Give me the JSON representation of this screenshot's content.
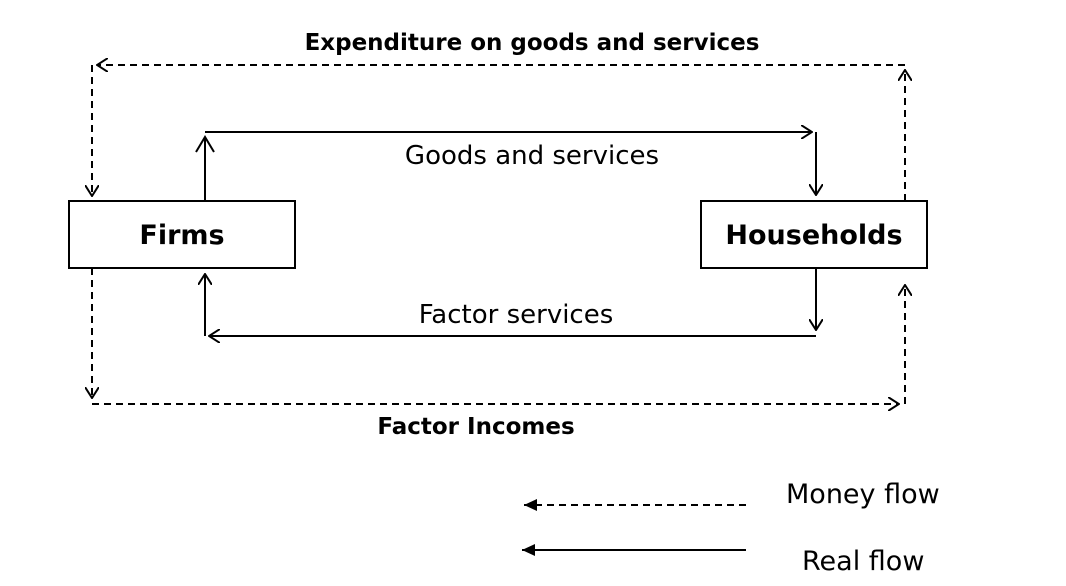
{
  "nodes": {
    "firms": "Firms",
    "households": "Households"
  },
  "flows": {
    "expenditure": "Expenditure on goods and services",
    "goods_services": "Goods and services",
    "factor_services": "Factor services",
    "factor_incomes": "Factor Incomes"
  },
  "legend": {
    "money_flow": "Money flow",
    "real_flow": "Real flow"
  }
}
